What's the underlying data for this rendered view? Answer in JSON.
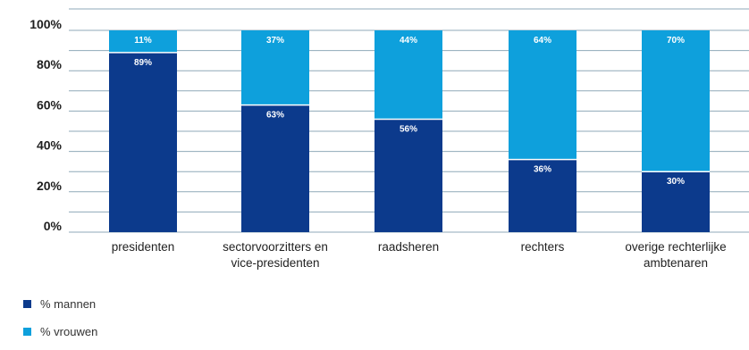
{
  "chart_data": {
    "type": "bar",
    "stacked": true,
    "categories": [
      [
        "presidenten"
      ],
      [
        "sectorvoorzitters en",
        "vice-presidenten"
      ],
      [
        "raadsheren"
      ],
      [
        "rechters"
      ],
      [
        "overige rechterlijke",
        "ambtenaren"
      ]
    ],
    "series": [
      {
        "name": "% mannen",
        "color": "#0c3a8c",
        "values": [
          89,
          63,
          56,
          36,
          30
        ],
        "labels": [
          "89%",
          "63%",
          "56%",
          "36%",
          "30%"
        ]
      },
      {
        "name": "% vrouwen",
        "color": "#0ea0dc",
        "values": [
          11,
          37,
          44,
          64,
          70
        ],
        "labels": [
          "11%",
          "37%",
          "44%",
          "64%",
          "70%"
        ]
      }
    ],
    "ylim": [
      0,
      100
    ],
    "yticks": [
      0,
      20,
      40,
      60,
      80,
      100
    ],
    "ytick_labels": [
      "0%",
      "20%",
      "40%",
      "60%",
      "80%",
      "100%"
    ],
    "grid": true,
    "gridline_color": "#8fa9b8",
    "legend_position": "bottom-left"
  }
}
